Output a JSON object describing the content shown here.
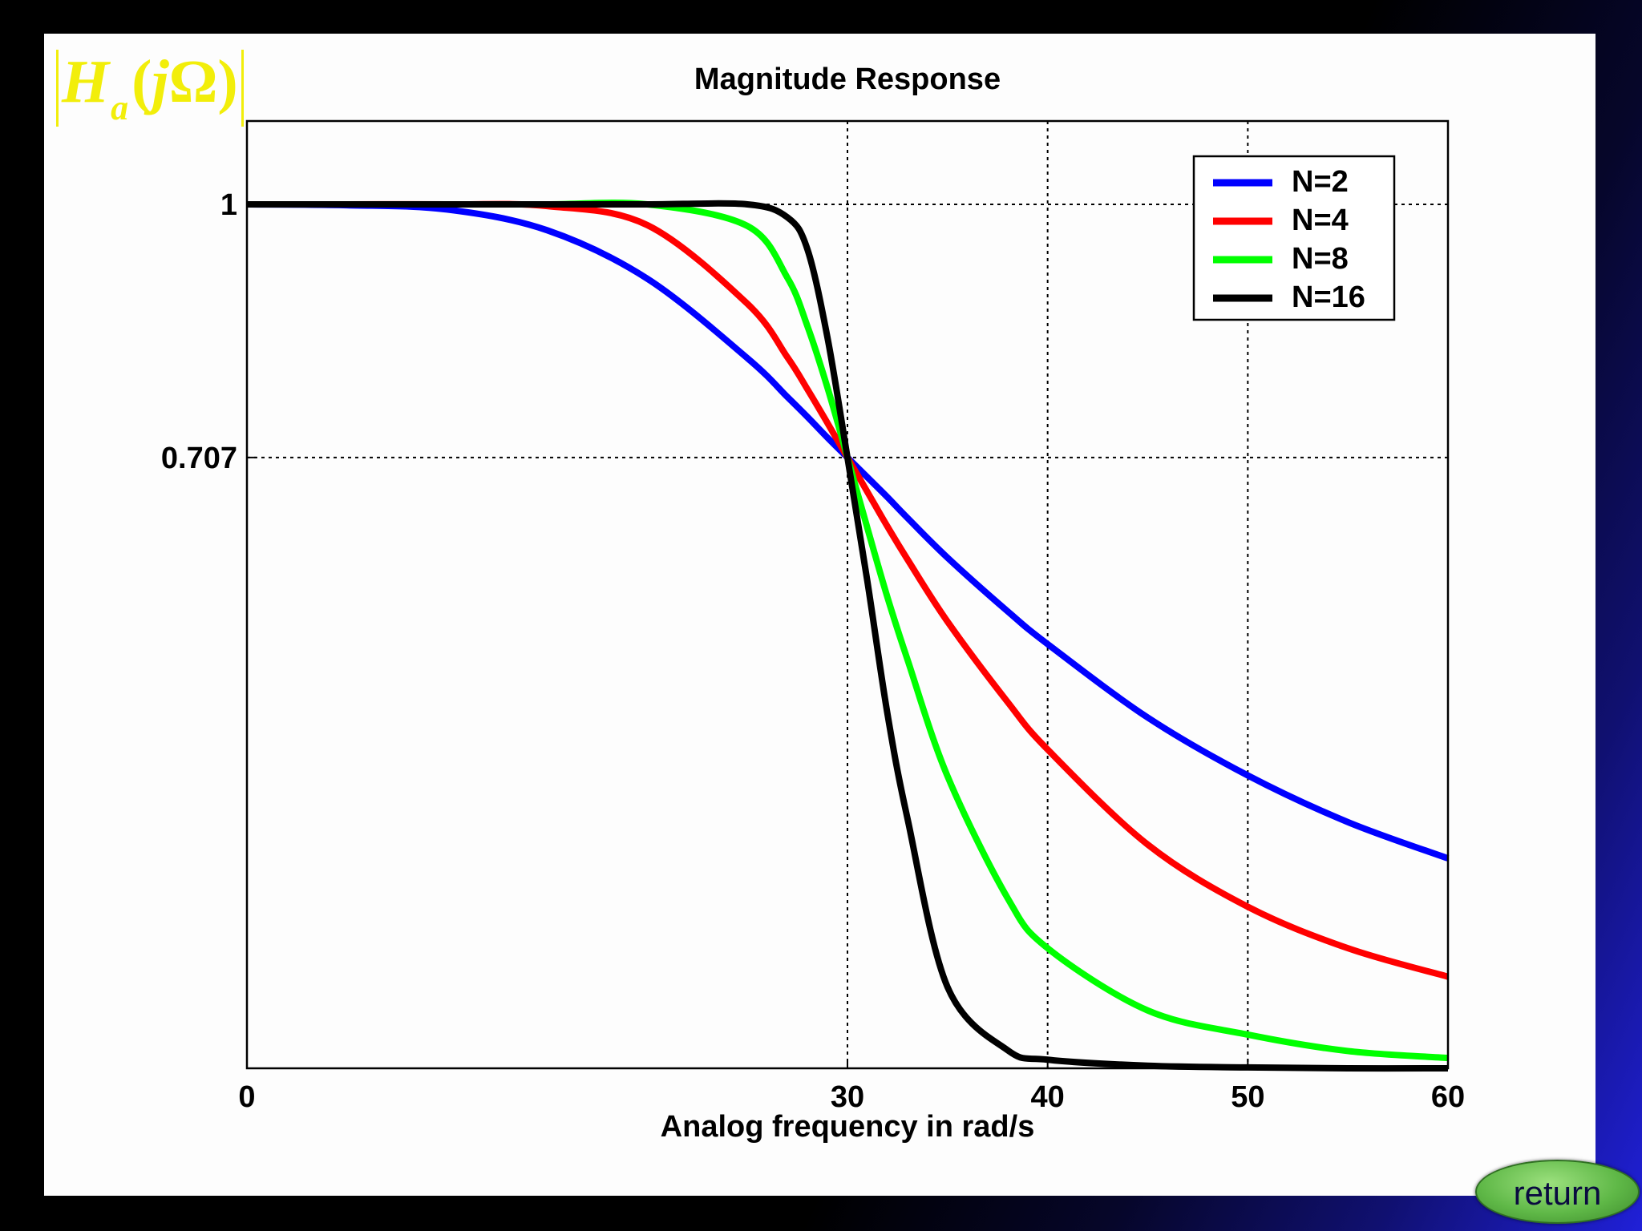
{
  "chart_data": {
    "type": "line",
    "title": "Magnitude Response",
    "xlabel": "Analog frequency in rad/s",
    "ylabel": "|Ha(jΩ)|",
    "xlim": [
      0,
      60
    ],
    "ylim": [
      0,
      1.1
    ],
    "grid": "dotted, at x = 30, 40, 50 and y = 0.707, 1",
    "legend_position": "top-right",
    "x_ticks": [
      {
        "value": 0,
        "label": "0"
      },
      {
        "value": 30,
        "label": "30"
      },
      {
        "value": 40,
        "label": "40"
      },
      {
        "value": 50,
        "label": "50"
      },
      {
        "value": 60,
        "label": "60"
      }
    ],
    "y_ticks": [
      {
        "value": 0.707,
        "label": "0.707"
      },
      {
        "value": 1,
        "label": "1"
      }
    ],
    "x": [
      0,
      5,
      10,
      15,
      20,
      25,
      27,
      28,
      29,
      30,
      31,
      32,
      33,
      35,
      38,
      40,
      45,
      50,
      55,
      60
    ],
    "series": [
      {
        "name": "N=2",
        "color": "#0000ff",
        "values": [
          1.0,
          0.999,
          0.994,
          0.97,
          0.914,
          0.822,
          0.777,
          0.754,
          0.73,
          0.707,
          0.684,
          0.661,
          0.637,
          0.591,
          0.529,
          0.491,
          0.406,
          0.339,
          0.285,
          0.243
        ]
      },
      {
        "name": "N=4",
        "color": "#ff0000",
        "values": [
          1.0,
          1.0,
          1.0,
          0.998,
          0.976,
          0.885,
          0.823,
          0.786,
          0.747,
          0.707,
          0.667,
          0.627,
          0.589,
          0.517,
          0.424,
          0.369,
          0.259,
          0.187,
          0.139,
          0.106
        ]
      },
      {
        "name": "N=8",
        "color": "#00ff00",
        "values": [
          1.0,
          1.0,
          1.0,
          1.0,
          1.0,
          0.975,
          0.915,
          0.859,
          0.788,
          0.707,
          0.625,
          0.545,
          0.473,
          0.338,
          0.197,
          0.139,
          0.067,
          0.039,
          0.02,
          0.012
        ]
      },
      {
        "name": "N=16",
        "color": "#000000",
        "values": [
          1.0,
          1.0,
          1.0,
          1.0,
          1.0,
          1.0,
          0.985,
          0.948,
          0.846,
          0.707,
          0.563,
          0.41,
          0.289,
          0.094,
          0.021,
          0.01,
          0.003,
          0.001,
          0.0,
          0.0
        ]
      }
    ]
  },
  "formula": {
    "main": "H",
    "sub": "a",
    "open": "(",
    "var": "j",
    "omega": "Ω",
    "close": ")"
  },
  "return_label": "return"
}
